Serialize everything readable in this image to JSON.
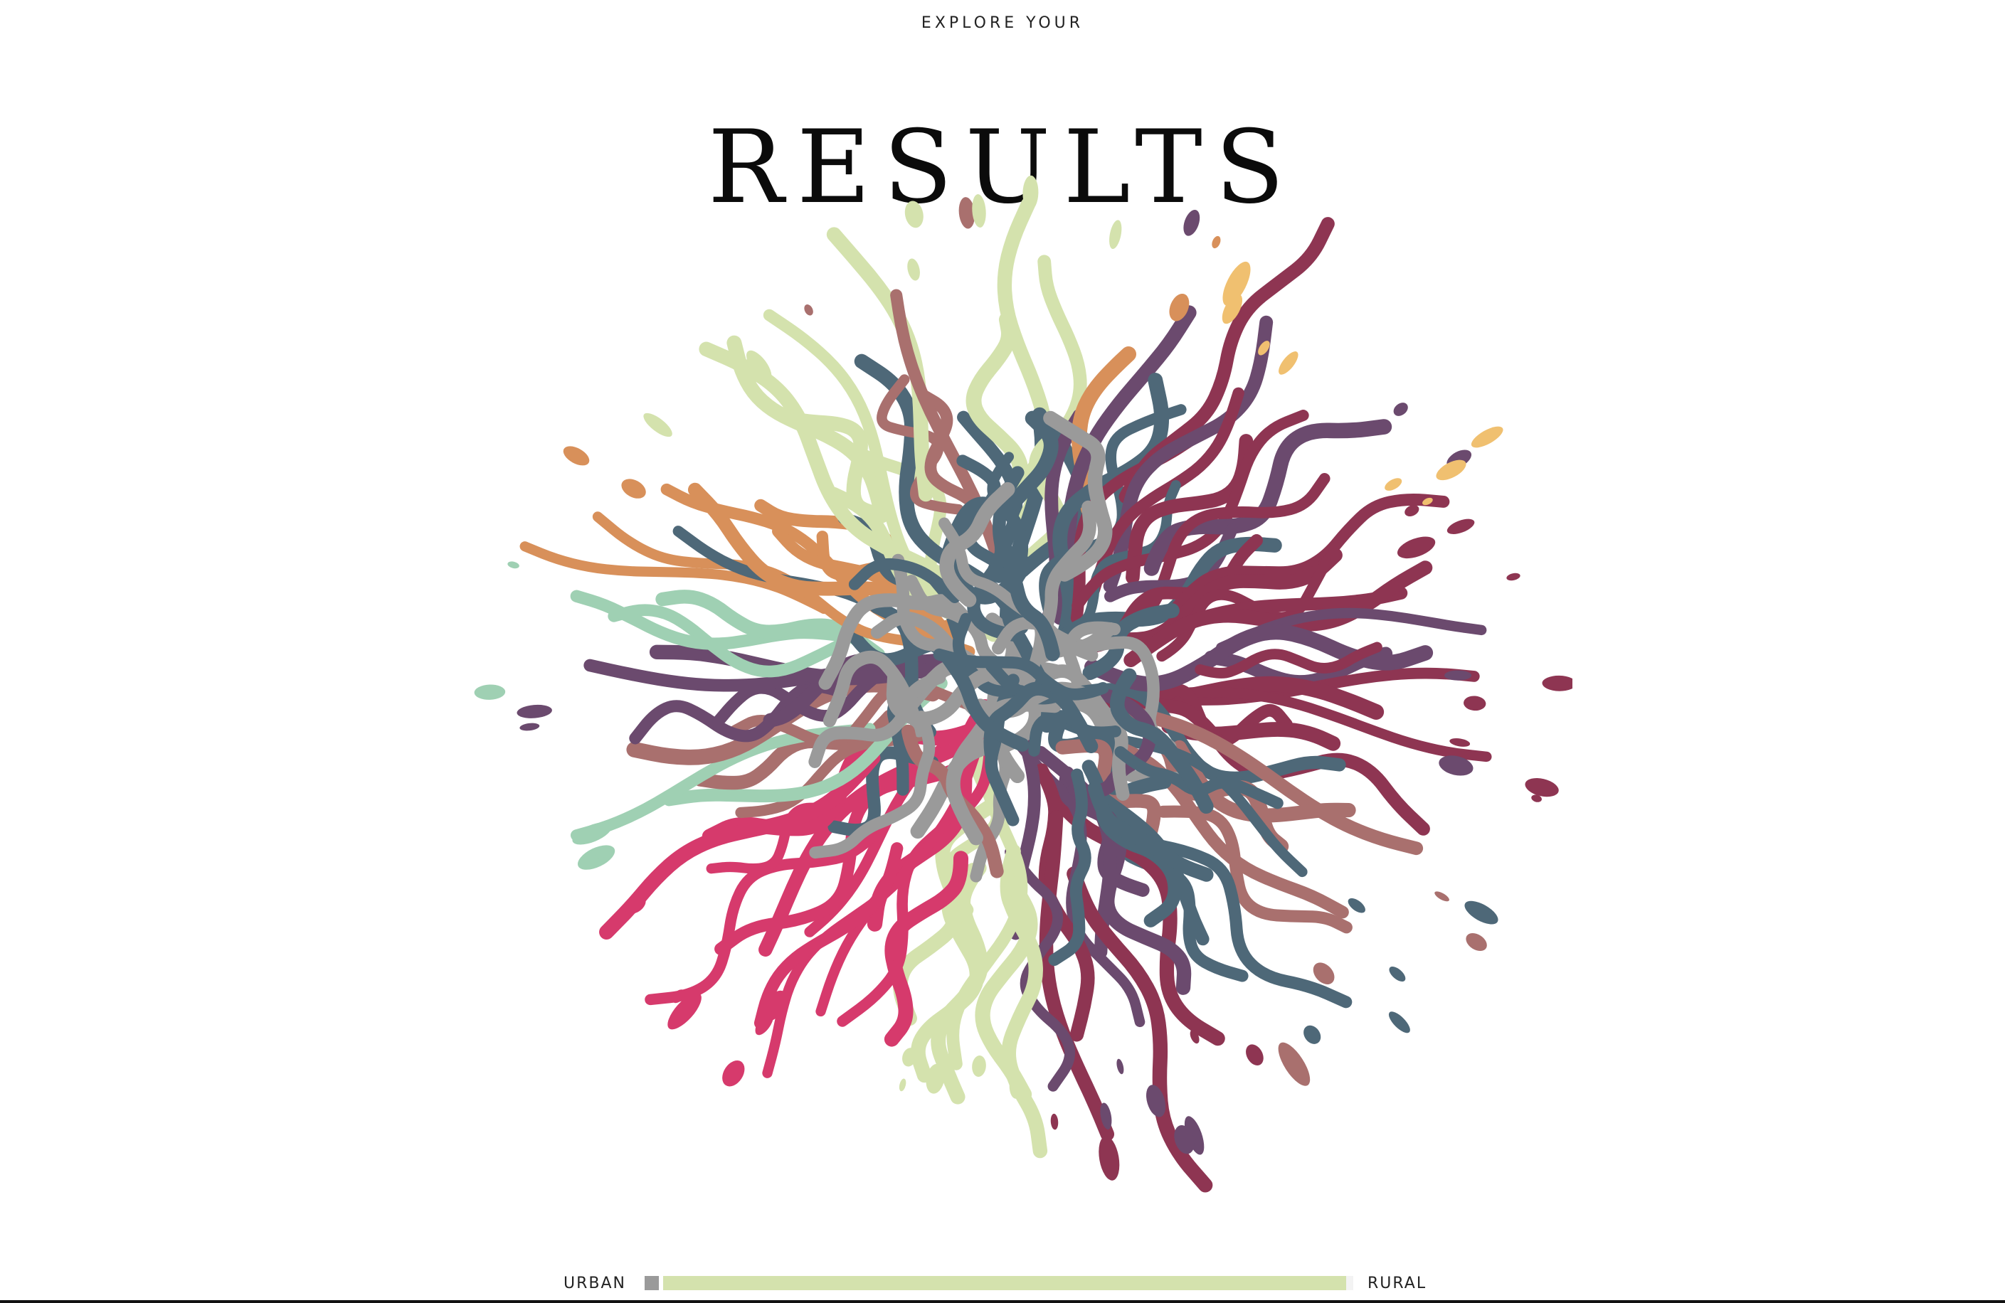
{
  "header": {
    "eyebrow": "EXPLORE YOUR",
    "title": "RESULTS"
  },
  "visualization": {
    "icon": "organic-fingerprint-pattern",
    "palette": {
      "green": "#d4e2ad",
      "magenta": "#d63a6c",
      "burgundy": "#8e3552",
      "purple": "#6b4a6e",
      "slate": "#4e6878",
      "gray": "#9a9a9a",
      "orange": "#d8905a",
      "teal": "#9fd0b3",
      "mauve": "#a9706e",
      "gold": "#f0c070"
    }
  },
  "legend": {
    "left_label": "URBAN",
    "right_label": "RURAL",
    "urban_color": "#9a9a9a",
    "rural_color": "#d4e2ad",
    "rural_fraction": 0.99
  }
}
